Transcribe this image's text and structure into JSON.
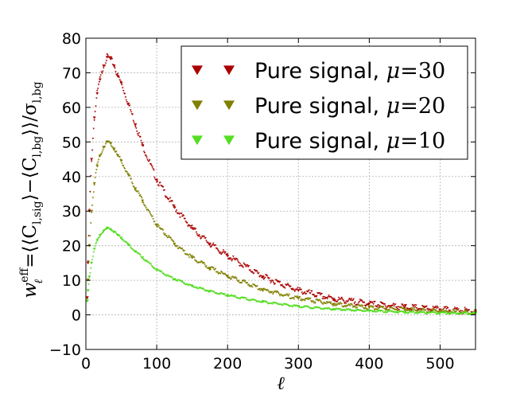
{
  "chart_data": {
    "type": "scatter",
    "title": "",
    "xlabel": "ℓ",
    "ylabel": {
      "prefix": "w",
      "sup": "eff",
      "sub": "ℓ",
      "body": "=⟨⟨C",
      "sig_sub": "l,sig",
      "middle": "⟩−⟨C",
      "bg_sub": "l,bg",
      "end": "⟩⟩/σ",
      "sigma_sub": "l,bg"
    },
    "xlim": [
      0,
      550
    ],
    "ylim": [
      -10,
      80
    ],
    "xticks": [
      "0",
      "100",
      "200",
      "300",
      "400",
      "500"
    ],
    "yticks": [
      "−10",
      "0",
      "10",
      "20",
      "30",
      "40",
      "50",
      "60",
      "70",
      "80"
    ],
    "xtick_values": [
      0,
      100,
      200,
      300,
      400,
      500
    ],
    "ytick_values": [
      -10,
      0,
      10,
      20,
      30,
      40,
      50,
      60,
      70,
      80
    ],
    "grid": true,
    "legend_position": "top-right",
    "series": [
      {
        "name_text": "Pure signal, ",
        "name_math": "μ",
        "name_value": "=30",
        "color": "#aa0000",
        "peak": 75,
        "x": [
          2,
          3,
          5,
          8,
          12,
          16,
          20,
          25,
          30,
          35,
          40,
          45,
          50,
          60,
          70,
          80,
          100,
          125,
          150,
          175,
          200,
          250,
          300,
          350,
          400,
          450,
          500,
          550
        ],
        "y": [
          5,
          15,
          30,
          45,
          57,
          64,
          68,
          72,
          74.5,
          74,
          72,
          69,
          67,
          61,
          55,
          49,
          39,
          31,
          25,
          20.5,
          17,
          11,
          7,
          4.5,
          3.2,
          2.2,
          1.5,
          1.0
        ]
      },
      {
        "name_text": "Pure signal, ",
        "name_math": "μ",
        "name_value": "=20",
        "color": "#808000",
        "peak": 50,
        "x": [
          2,
          3,
          5,
          8,
          12,
          16,
          20,
          25,
          30,
          35,
          40,
          45,
          50,
          60,
          70,
          80,
          100,
          125,
          150,
          175,
          200,
          250,
          300,
          350,
          400,
          450,
          500,
          550
        ],
        "y": [
          4,
          10,
          20,
          30,
          38,
          43,
          46,
          48.5,
          50,
          49.5,
          48,
          46,
          44.5,
          40.5,
          36.5,
          33,
          26,
          20.5,
          16.5,
          13.5,
          11.2,
          7.3,
          4.7,
          3.1,
          2.1,
          1.5,
          1.0,
          0.7
        ]
      },
      {
        "name_text": "Pure signal, ",
        "name_math": "μ",
        "name_value": "=10",
        "color": "#55dd22",
        "peak": 25,
        "x": [
          2,
          3,
          5,
          8,
          12,
          16,
          20,
          25,
          30,
          35,
          40,
          45,
          50,
          60,
          70,
          80,
          100,
          125,
          150,
          175,
          200,
          250,
          300,
          350,
          400,
          450,
          500,
          550
        ],
        "y": [
          4,
          7,
          11,
          15,
          19,
          21.5,
          23,
          24.2,
          25,
          24.7,
          24,
          23,
          22.2,
          20.2,
          18.3,
          16.5,
          13,
          10.3,
          8.3,
          6.8,
          5.6,
          3.7,
          2.4,
          1.6,
          1.1,
          0.75,
          0.5,
          0.35
        ]
      }
    ]
  }
}
